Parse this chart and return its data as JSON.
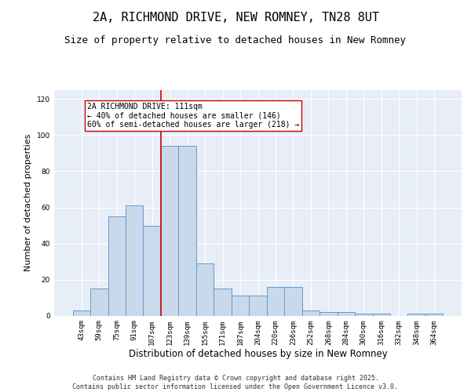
{
  "title1": "2A, RICHMOND DRIVE, NEW ROMNEY, TN28 8UT",
  "title2": "Size of property relative to detached houses in New Romney",
  "xlabel": "Distribution of detached houses by size in New Romney",
  "ylabel": "Number of detached properties",
  "categories": [
    "43sqm",
    "59sqm",
    "75sqm",
    "91sqm",
    "107sqm",
    "123sqm",
    "139sqm",
    "155sqm",
    "171sqm",
    "187sqm",
    "204sqm",
    "220sqm",
    "236sqm",
    "252sqm",
    "268sqm",
    "284sqm",
    "300sqm",
    "316sqm",
    "332sqm",
    "348sqm",
    "364sqm"
  ],
  "values": [
    3,
    15,
    55,
    61,
    50,
    94,
    94,
    29,
    15,
    11,
    11,
    16,
    16,
    3,
    2,
    2,
    1,
    1,
    0,
    1,
    1
  ],
  "bar_color": "#c9d9ec",
  "bar_edge_color": "#6699cc",
  "vline_x": 4.5,
  "vline_color": "#cc0000",
  "annotation_text": "2A RICHMOND DRIVE: 111sqm\n← 40% of detached houses are smaller (146)\n60% of semi-detached houses are larger (218) →",
  "annotation_box_color": "#ffffff",
  "annotation_box_edge_color": "#cc0000",
  "ylim": [
    0,
    125
  ],
  "yticks": [
    0,
    20,
    40,
    60,
    80,
    100,
    120
  ],
  "background_color": "#e8eef7",
  "grid_color": "#ffffff",
  "footer_text": "Contains HM Land Registry data © Crown copyright and database right 2025.\nContains public sector information licensed under the Open Government Licence v3.0.",
  "title1_fontsize": 11,
  "title2_fontsize": 9,
  "xlabel_fontsize": 8.5,
  "ylabel_fontsize": 8,
  "tick_fontsize": 6.5,
  "annotation_fontsize": 7,
  "footer_fontsize": 6
}
